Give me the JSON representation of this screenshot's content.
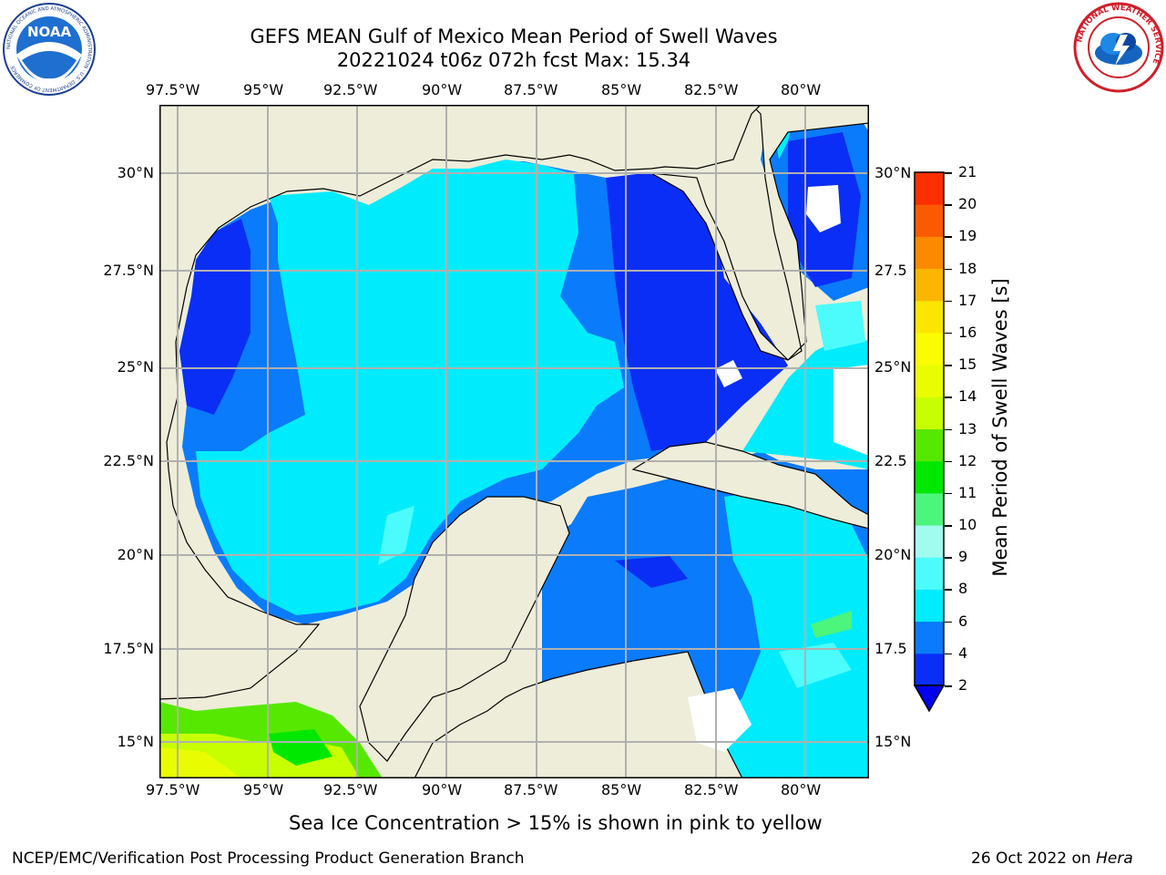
{
  "header": {
    "title_line1": "GEFS MEAN Gulf of Mexico Mean Period of Swell Waves",
    "title_line2": "20221024 t06z 072h fcst   Max: 15.34"
  },
  "logos": {
    "noaa_text": "NOAA",
    "noaa_ring": "NATIONAL OCEANIC AND ATMOSPHERIC ADMINISTRATION · U.S. DEPARTMENT OF COMMERCE",
    "nws_ring": "NATIONAL WEATHER SERVICE"
  },
  "map": {
    "lon_labels": [
      "97.5°W",
      "95°W",
      "92.5°W",
      "90°W",
      "87.5°W",
      "85°W",
      "82.5°W",
      "80°W"
    ],
    "lat_labels_left": [
      "30°N",
      "27.5°N",
      "25°N",
      "22.5°N",
      "20°N",
      "17.5°N",
      "15°N"
    ],
    "lat_labels_right": [
      "30°N",
      "27.5",
      "25°N",
      "22.5",
      "20°N",
      "17.5",
      "15°N"
    ],
    "lon_range": [
      -98,
      -78.25
    ],
    "lat_range": [
      14,
      31.5
    ],
    "colors": {
      "land": "#eeedd9",
      "grid": "#b0b0b0"
    }
  },
  "colorbar": {
    "label": "Mean Period of Swell Waves [s]",
    "ticks": [
      "2",
      "4",
      "6",
      "8",
      "9",
      "10",
      "11",
      "12",
      "13",
      "14",
      "15",
      "16",
      "17",
      "18",
      "19",
      "20",
      "21"
    ],
    "colors": [
      "#0a2ef5",
      "#0a7bfb",
      "#00ecfc",
      "#4cfcfc",
      "#a1fcf0",
      "#4cf57c",
      "#00e800",
      "#57e800",
      "#c8ff00",
      "#eafd00",
      "#fcfc00",
      "#fce600",
      "#fcb500",
      "#fc8a00",
      "#fc5a00",
      "#fc2f00"
    ],
    "under_color": "#0000ee"
  },
  "footer": {
    "note": "Sea Ice Concentration > 15% is shown in pink to yellow",
    "left": "NCEP/EMC/Verification Post Processing Product Generation Branch",
    "date": "26 Oct 2022 on ",
    "host": "Hera"
  }
}
